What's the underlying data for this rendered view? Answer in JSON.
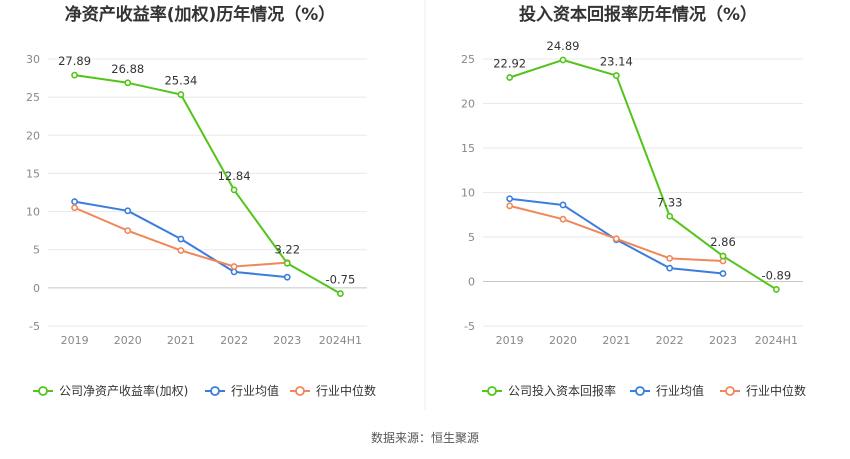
{
  "chart_data": [
    {
      "type": "line",
      "title": "净资产收益率(加权)历年情况（%）",
      "categories": [
        "2019",
        "2020",
        "2021",
        "2022",
        "2023",
        "2024H1"
      ],
      "ylim": [
        -5,
        30
      ],
      "yticks": [
        -5,
        0,
        5,
        10,
        15,
        20,
        25,
        30
      ],
      "ytick_labels": [
        "-5",
        "0",
        "5",
        "10",
        "15",
        "20",
        "25",
        "30"
      ],
      "grid": true,
      "legend_position": "bottom",
      "series": [
        {
          "name": "公司净资产收益率(加权)",
          "color": "#52c41a",
          "values": [
            27.89,
            26.88,
            25.34,
            12.84,
            3.22,
            -0.75
          ],
          "data_labels": [
            "27.89",
            "26.88",
            "25.34",
            "12.84",
            "3.22",
            "-0.75"
          ]
        },
        {
          "name": "行业均值",
          "color": "#3b7ddd",
          "values": [
            11.3,
            10.1,
            6.4,
            2.1,
            1.4,
            null
          ]
        },
        {
          "name": "行业中位数",
          "color": "#f0875a",
          "values": [
            10.5,
            7.5,
            4.9,
            2.8,
            3.3,
            null
          ]
        }
      ]
    },
    {
      "type": "line",
      "title": "投入资本回报率历年情况（%）",
      "categories": [
        "2019",
        "2020",
        "2021",
        "2022",
        "2023",
        "2024H1"
      ],
      "ylim": [
        -5,
        25
      ],
      "yticks": [
        -5,
        0,
        5,
        10,
        15,
        20,
        25
      ],
      "ytick_labels": [
        "-5",
        "0",
        "5",
        "10",
        "15",
        "20",
        "25"
      ],
      "grid": true,
      "legend_position": "bottom",
      "series": [
        {
          "name": "公司投入资本回报率",
          "color": "#52c41a",
          "values": [
            22.92,
            24.89,
            23.14,
            7.33,
            2.86,
            -0.89
          ],
          "data_labels": [
            "22.92",
            "24.89",
            "23.14",
            "7.33",
            "2.86",
            "-0.89"
          ]
        },
        {
          "name": "行业均值",
          "color": "#3b7ddd",
          "values": [
            9.3,
            8.6,
            4.7,
            1.5,
            0.9,
            null
          ]
        },
        {
          "name": "行业中位数",
          "color": "#f0875a",
          "values": [
            8.5,
            7.0,
            4.8,
            2.6,
            2.3,
            null
          ]
        }
      ]
    }
  ],
  "footer": {
    "source": "数据来源：恒生聚源"
  }
}
